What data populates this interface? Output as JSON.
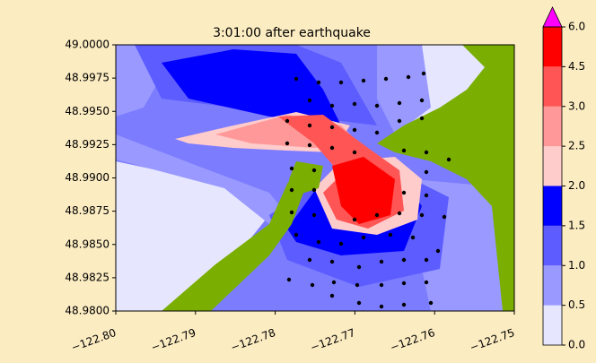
{
  "chart_data": {
    "type": "contour",
    "title": "3:01:00 after earthquake",
    "xlim": [
      -122.8,
      -122.75
    ],
    "xticks": [
      {
        "value": -122.8,
        "label": "−122.80"
      },
      {
        "value": -122.79,
        "label": "−122.79"
      },
      {
        "value": -122.78,
        "label": "−122.78"
      },
      {
        "value": -122.77,
        "label": "−122.77"
      },
      {
        "value": -122.76,
        "label": "−122.76"
      },
      {
        "value": -122.75,
        "label": "−122.75"
      }
    ],
    "ylim": [
      48.98,
      49.0
    ],
    "yticks": [
      {
        "value": 48.98,
        "label": "48.9800"
      },
      {
        "value": 48.9825,
        "label": "48.9825"
      },
      {
        "value": 48.985,
        "label": "48.9850"
      },
      {
        "value": 48.9875,
        "label": "48.9875"
      },
      {
        "value": 48.99,
        "label": "48.9900"
      },
      {
        "value": 48.9925,
        "label": "48.9925"
      },
      {
        "value": 48.995,
        "label": "48.9950"
      },
      {
        "value": 48.9975,
        "label": "48.9975"
      },
      {
        "value": 49.0,
        "label": "49.0000"
      }
    ],
    "colorbar_ticks": [
      {
        "value": 0,
        "label": "0.0"
      },
      0.5,
      {
        "value": 1,
        "label": "1.0"
      },
      1.5,
      {
        "value": 2,
        "label": "2.0"
      },
      2.5,
      {
        "value": 3,
        "label": "3.0"
      },
      4.5,
      {
        "value": 6,
        "label": "6.0"
      }
    ],
    "colors": [
      "#e6e6ff",
      "#9999ff",
      "#5c5cff",
      "#0000ff",
      "#ffcccc",
      "#ff9999",
      "#ff5555",
      "#ff0000"
    ],
    "extend_color": "#ff00ff"
  }
}
